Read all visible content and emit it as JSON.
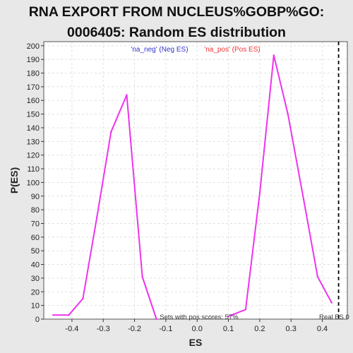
{
  "chart_data": {
    "type": "line",
    "title_line1": "RNA EXPORT FROM NUCLEUS%GOBP%GO:",
    "title_line2": "0006405: Random ES distribution",
    "xlabel": "ES",
    "ylabel": "P(ES)",
    "xlim": [
      -0.49,
      0.48
    ],
    "ylim": [
      0,
      203
    ],
    "x_ticks": [
      -0.4,
      -0.3,
      -0.2,
      -0.1,
      0.0,
      0.1,
      0.2,
      0.3,
      0.4
    ],
    "x_tick_labels": [
      "-0.4",
      "-0.3",
      "-0.2",
      "-0.1",
      "0.0",
      "0.1",
      "0.2",
      "0.3",
      "0.4"
    ],
    "y_ticks": [
      0,
      10,
      20,
      30,
      40,
      50,
      60,
      70,
      80,
      90,
      100,
      110,
      120,
      130,
      140,
      150,
      160,
      170,
      180,
      190,
      200
    ],
    "y_tick_labels": [
      "0",
      "10",
      "20",
      "30",
      "40",
      "50",
      "60",
      "70",
      "80",
      "90",
      "100",
      "110",
      "120",
      "130",
      "140",
      "150",
      "160",
      "170",
      "180",
      "190",
      "200"
    ],
    "grid": true,
    "series": [
      {
        "name": "'na_neg' (Neg ES)",
        "color": "#3333cc",
        "x": [
          -0.46,
          -0.41,
          -0.365,
          -0.32,
          -0.275,
          -0.225,
          -0.175,
          -0.13
        ],
        "values": [
          3,
          3,
          15,
          75,
          137,
          164,
          31,
          0
        ]
      },
      {
        "name": "'na_pos' (Pos ES)",
        "color": "#ee3333",
        "x": [
          0.1,
          0.155,
          0.2,
          0.245,
          0.29,
          0.34,
          0.385,
          0.43
        ],
        "values": [
          2,
          7,
          92,
          193,
          150,
          88,
          31,
          12
        ]
      }
    ],
    "curve_color": "#ee33ee",
    "real_es": {
      "x": 0.452,
      "label": "Real ES 0"
    },
    "annotation": "Sets with pos scores: 57%",
    "legend_placement": "top"
  }
}
